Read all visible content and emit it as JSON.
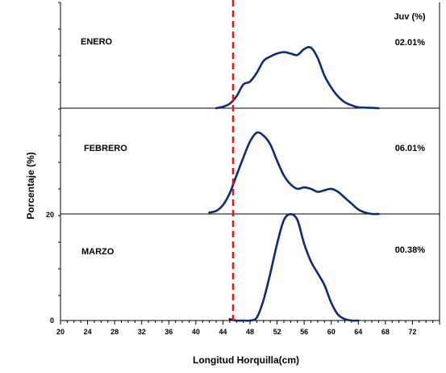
{
  "chart_data": {
    "type": "line",
    "xlabel": "Longitud Horquilla(cm)",
    "ylabel": "Porcentaje (%)",
    "xlim": [
      20,
      76
    ],
    "x_ticks": [
      20,
      24,
      28,
      32,
      36,
      40,
      44,
      48,
      52,
      56,
      60,
      64,
      68,
      72
    ],
    "y_tick_labels": [
      "0",
      "20"
    ],
    "header": "Juv (%)",
    "reference_line": {
      "x": 45.5,
      "style": "dashed",
      "color": "#e8141b"
    },
    "series_color": "#0d2a7a",
    "panels": [
      {
        "label": "ENERO",
        "juv": "02.01%",
        "x": [
          43,
          44,
          45,
          46,
          47,
          48,
          49,
          50,
          51,
          52,
          53,
          54,
          55,
          56,
          57,
          58,
          59,
          60,
          61,
          62,
          63,
          64,
          65,
          66,
          67
        ],
        "values": [
          0,
          0.5,
          1.5,
          4,
          8,
          9,
          12,
          16,
          17.5,
          18.5,
          19,
          18.5,
          18,
          20,
          20.5,
          17,
          11,
          7,
          4,
          2,
          1,
          0.3,
          0.2,
          0.1,
          0
        ]
      },
      {
        "label": "FEBRERO",
        "juv": "06.01%",
        "x": [
          42,
          43,
          44,
          45,
          46,
          47,
          48,
          49,
          50,
          51,
          52,
          53,
          54,
          55,
          56,
          57,
          58,
          59,
          60,
          61,
          62,
          63,
          64,
          65,
          66,
          67
        ],
        "values": [
          0.5,
          1,
          3,
          7,
          13,
          19,
          24.5,
          27.5,
          26.5,
          23.5,
          18,
          13,
          10,
          8.5,
          9,
          8.5,
          7.5,
          8,
          8.5,
          7.5,
          5.5,
          3.5,
          1.5,
          0.5,
          0,
          0
        ]
      },
      {
        "label": "MARZO",
        "juv": "00.38%",
        "x": [
          45,
          46,
          47,
          48,
          49,
          50,
          51,
          52,
          53,
          54,
          55,
          56,
          57,
          58,
          59,
          60,
          61,
          62,
          63,
          64
        ],
        "values": [
          0.5,
          0,
          0,
          0,
          1,
          7,
          16,
          26,
          34,
          36,
          34,
          26,
          20,
          16,
          12,
          6,
          2,
          0.5,
          0,
          0
        ]
      }
    ]
  }
}
